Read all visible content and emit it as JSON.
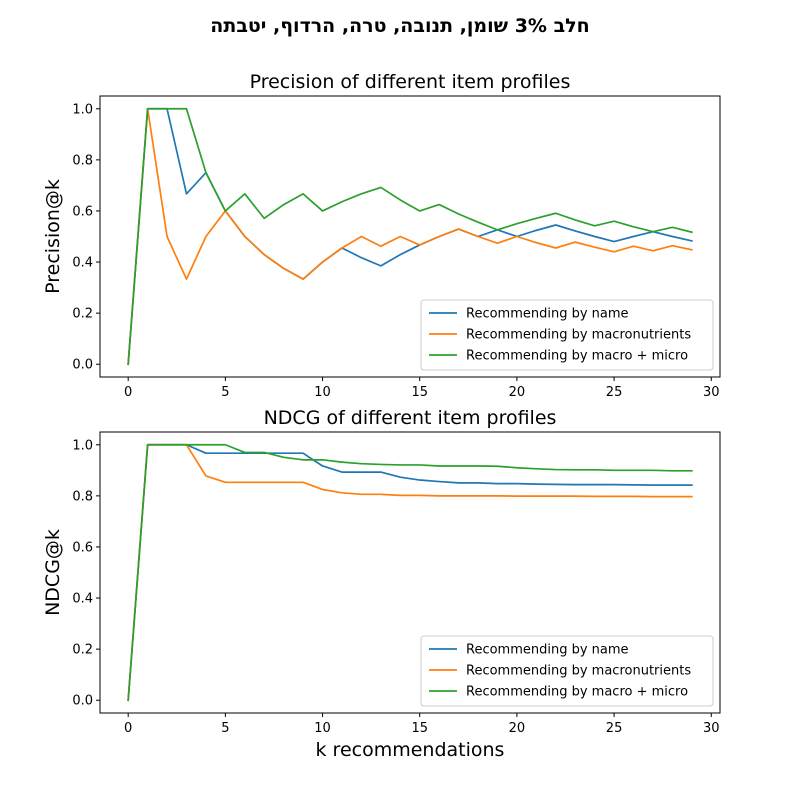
{
  "figure": {
    "suptitle": "חלב 3% שומן, תנובה, טרה, הרדוף, יטבתה"
  },
  "colors": {
    "name": "#1f77b4",
    "macronutrients": "#ff7f0e",
    "macro_micro": "#2ca02c"
  },
  "chart_data": [
    {
      "type": "line",
      "title": "Precision of different item profiles",
      "xlabel": "",
      "ylabel": "Precision@k",
      "xlim": [
        -1.45,
        30.45
      ],
      "ylim": [
        -0.05,
        1.05
      ],
      "xticks": [
        0,
        5,
        10,
        15,
        20,
        25,
        30
      ],
      "yticks": [
        "0.0",
        "0.2",
        "0.4",
        "0.6",
        "0.8",
        "1.0"
      ],
      "legend": "lower-right",
      "x": [
        0,
        1,
        2,
        3,
        4,
        5,
        6,
        7,
        8,
        9,
        10,
        11,
        12,
        13,
        14,
        15,
        16,
        17,
        18,
        19,
        20,
        21,
        22,
        23,
        24,
        25,
        26,
        27,
        28,
        29
      ],
      "series": [
        {
          "name": "Recommending by name",
          "color": "#1f77b4",
          "values": [
            0.0,
            1.0,
            1.0,
            0.667,
            0.75,
            0.6,
            0.5,
            0.429,
            0.375,
            0.333,
            0.4,
            0.455,
            0.417,
            0.385,
            0.429,
            0.467,
            0.5,
            0.529,
            0.5,
            0.526,
            0.5,
            0.524,
            0.545,
            0.522,
            0.5,
            0.48,
            0.5,
            0.519,
            0.5,
            0.483
          ]
        },
        {
          "name": "Recommending by macronutrients",
          "color": "#ff7f0e",
          "values": [
            0.0,
            1.0,
            0.5,
            0.333,
            0.5,
            0.6,
            0.5,
            0.429,
            0.375,
            0.333,
            0.4,
            0.455,
            0.5,
            0.462,
            0.5,
            0.467,
            0.5,
            0.529,
            0.5,
            0.474,
            0.5,
            0.476,
            0.455,
            0.478,
            0.458,
            0.44,
            0.462,
            0.444,
            0.464,
            0.448
          ]
        },
        {
          "name": "Recommending by macro + micro",
          "color": "#2ca02c",
          "values": [
            0.0,
            1.0,
            1.0,
            1.0,
            0.75,
            0.6,
            0.667,
            0.571,
            0.625,
            0.667,
            0.6,
            0.636,
            0.667,
            0.692,
            0.643,
            0.6,
            0.625,
            0.588,
            0.556,
            0.526,
            0.55,
            0.571,
            0.591,
            0.565,
            0.542,
            0.56,
            0.538,
            0.519,
            0.536,
            0.517
          ]
        }
      ]
    },
    {
      "type": "line",
      "title": "NDCG of different item profiles",
      "xlabel": "k recommendations",
      "ylabel": "NDCG@k",
      "xlim": [
        -1.45,
        30.45
      ],
      "ylim": [
        -0.05,
        1.05
      ],
      "xticks": [
        0,
        5,
        10,
        15,
        20,
        25,
        30
      ],
      "yticks": [
        "0.0",
        "0.2",
        "0.4",
        "0.6",
        "0.8",
        "1.0"
      ],
      "legend": "lower-right",
      "x": [
        0,
        1,
        2,
        3,
        4,
        5,
        6,
        7,
        8,
        9,
        10,
        11,
        12,
        13,
        14,
        15,
        16,
        17,
        18,
        19,
        20,
        21,
        22,
        23,
        24,
        25,
        26,
        27,
        28,
        29
      ],
      "series": [
        {
          "name": "Recommending by name",
          "color": "#1f77b4",
          "values": [
            0.0,
            1.0,
            1.0,
            1.0,
            0.967,
            0.967,
            0.967,
            0.967,
            0.967,
            0.967,
            0.917,
            0.893,
            0.893,
            0.893,
            0.873,
            0.862,
            0.856,
            0.851,
            0.851,
            0.848,
            0.848,
            0.846,
            0.845,
            0.844,
            0.844,
            0.844,
            0.843,
            0.842,
            0.842,
            0.842
          ]
        },
        {
          "name": "Recommending by macronutrients",
          "color": "#ff7f0e",
          "values": [
            0.0,
            1.0,
            1.0,
            1.0,
            0.878,
            0.853,
            0.853,
            0.853,
            0.853,
            0.853,
            0.825,
            0.812,
            0.806,
            0.806,
            0.802,
            0.802,
            0.8,
            0.8,
            0.8,
            0.8,
            0.799,
            0.799,
            0.799,
            0.799,
            0.798,
            0.798,
            0.798,
            0.797,
            0.797,
            0.797
          ]
        },
        {
          "name": "Recommending by macro + micro",
          "color": "#2ca02c",
          "values": [
            0.0,
            1.0,
            1.0,
            1.0,
            1.0,
            1.0,
            0.97,
            0.97,
            0.951,
            0.941,
            0.941,
            0.932,
            0.926,
            0.923,
            0.921,
            0.921,
            0.917,
            0.917,
            0.917,
            0.916,
            0.91,
            0.906,
            0.903,
            0.902,
            0.902,
            0.9,
            0.9,
            0.9,
            0.898,
            0.898
          ]
        }
      ]
    }
  ]
}
